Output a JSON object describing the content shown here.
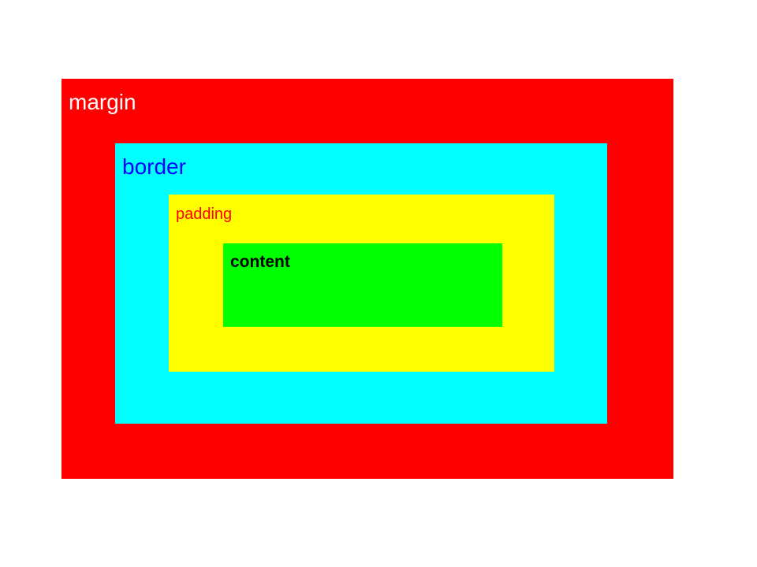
{
  "layers": {
    "margin": {
      "label": "margin",
      "fill": "#ff0000",
      "text_color": "#ffffff"
    },
    "border": {
      "label": "border",
      "fill": "#00ffff",
      "text_color": "#0000ff"
    },
    "padding": {
      "label": "padding",
      "fill": "#ffff00",
      "text_color": "#ff0000"
    },
    "content": {
      "label": "content",
      "fill": "#00ff00",
      "text_color": "#000000"
    }
  }
}
